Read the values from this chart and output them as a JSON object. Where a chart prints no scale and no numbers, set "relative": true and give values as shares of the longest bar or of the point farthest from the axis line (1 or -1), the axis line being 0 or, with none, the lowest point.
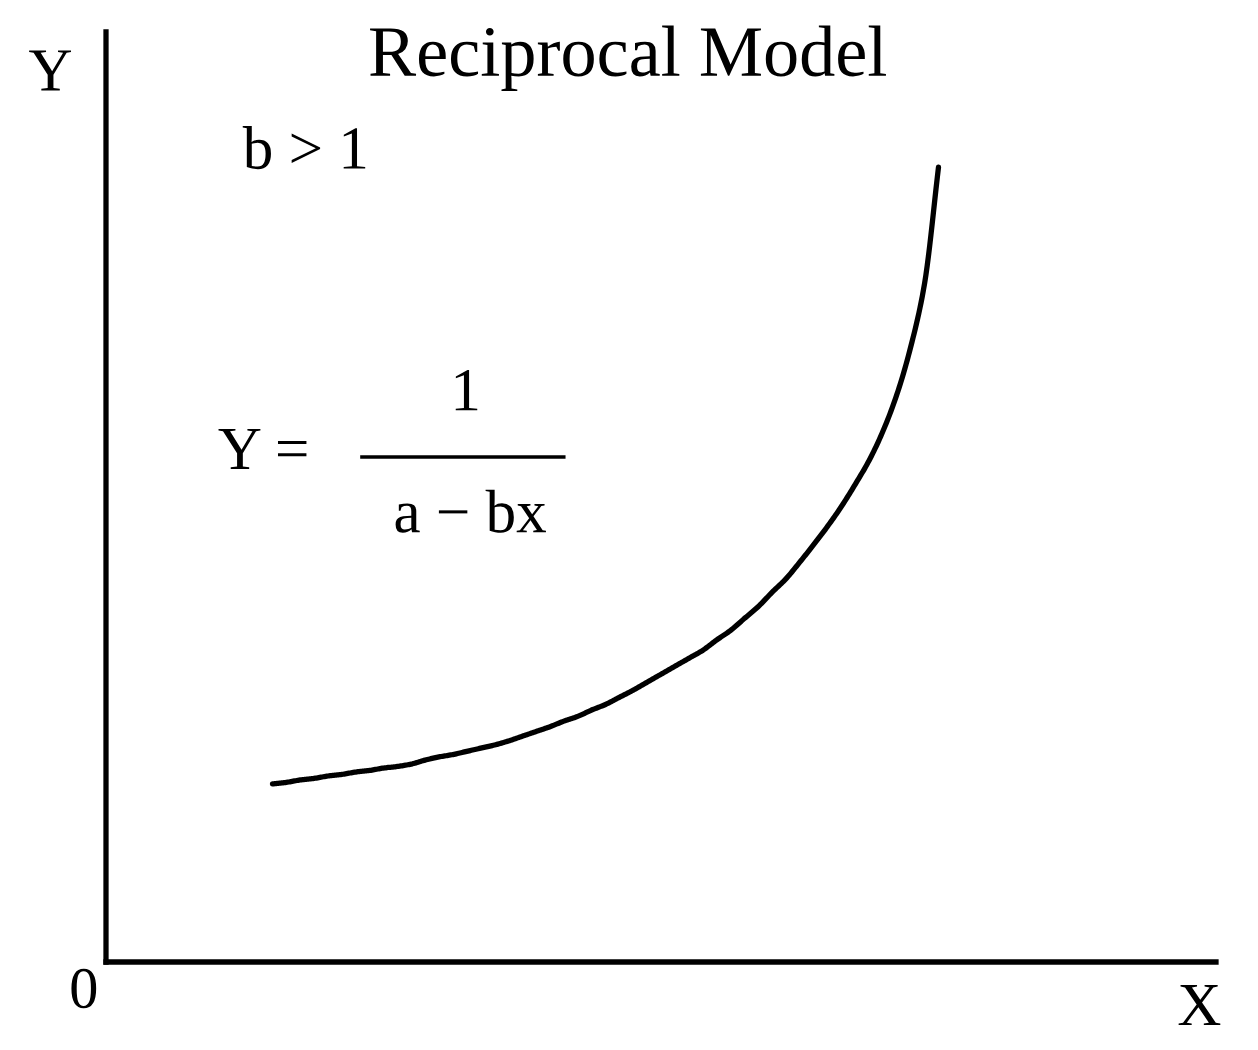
{
  "chart_data": {
    "type": "line",
    "title": "Reciprocal Model",
    "xlabel": "X",
    "ylabel": "Y",
    "relative": true,
    "marker": "none",
    "line_style": "solid",
    "categories": [
      null,
      null,
      null,
      null,
      null,
      null,
      null,
      null,
      null,
      null,
      null,
      null,
      null,
      null,
      null,
      null,
      null,
      null,
      null,
      null,
      null,
      null,
      null,
      null,
      null,
      null,
      null,
      null,
      null,
      null,
      null,
      null,
      null,
      null,
      null,
      null,
      null,
      null,
      null,
      null,
      null,
      null,
      null,
      null,
      null,
      null,
      null,
      null,
      null,
      null,
      null,
      null,
      null,
      null,
      null,
      null,
      null,
      null,
      null,
      null,
      null,
      null,
      null,
      null,
      null,
      null,
      null,
      null,
      null,
      null,
      null,
      null,
      null,
      null,
      null,
      null,
      null,
      null,
      null,
      null,
      null
    ],
    "series": [
      {
        "color": "#000000",
        "values": [
          null,
          null,
          null,
          null,
          null,
          null,
          null,
          null,
          null,
          null,
          null,
          null,
          0.224,
          0.226,
          0.229,
          0.231,
          0.234,
          0.236,
          0.239,
          0.241,
          0.244,
          0.246,
          0.249,
          0.254,
          0.258,
          0.261,
          0.265,
          0.269,
          0.273,
          0.278,
          0.284,
          0.29,
          0.296,
          0.303,
          0.309,
          0.317,
          0.324,
          0.333,
          0.342,
          0.352,
          0.362,
          0.372,
          0.382,
          0.392,
          0.405,
          0.417,
          0.432,
          0.447,
          0.465,
          0.482,
          0.503,
          0.525,
          0.548,
          0.573,
          0.601,
          0.631,
          0.668,
          0.714,
          0.774,
          0.854,
          1.0,
          null,
          null,
          null,
          null,
          null,
          null,
          null,
          null,
          null,
          null,
          null,
          null,
          null,
          null,
          null,
          null,
          null,
          null,
          null,
          null
        ]
      }
    ],
    "annotations": [
      "b > 1",
      "Y =",
      "1",
      "a − bx",
      "0"
    ]
  }
}
